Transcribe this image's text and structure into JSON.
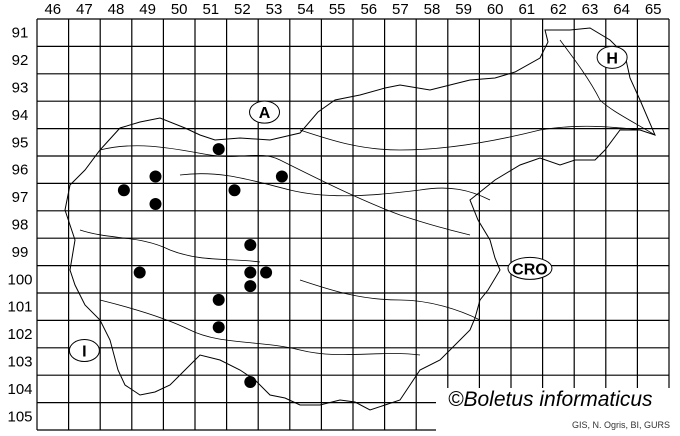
{
  "map": {
    "columns": [
      46,
      47,
      48,
      49,
      50,
      51,
      52,
      53,
      54,
      55,
      56,
      57,
      58,
      59,
      60,
      61,
      62,
      63,
      64,
      65
    ],
    "rows": [
      91,
      92,
      93,
      94,
      95,
      96,
      97,
      98,
      99,
      100,
      101,
      102,
      103,
      104,
      105
    ],
    "dot_color": "#000000",
    "records": [
      {
        "col": 51.75,
        "row": 95.75
      },
      {
        "col": 49.75,
        "row": 96.75
      },
      {
        "col": 48.75,
        "row": 97.25
      },
      {
        "col": 49.75,
        "row": 97.75
      },
      {
        "col": 52.25,
        "row": 97.25
      },
      {
        "col": 53.75,
        "row": 96.75
      },
      {
        "col": 52.75,
        "row": 99.25
      },
      {
        "col": 49.25,
        "row": 100.25
      },
      {
        "col": 52.75,
        "row": 100.25
      },
      {
        "col": 53.25,
        "row": 100.25
      },
      {
        "col": 52.75,
        "row": 100.75
      },
      {
        "col": 51.75,
        "row": 101.25
      },
      {
        "col": 51.75,
        "row": 102.25
      },
      {
        "col": 52.75,
        "row": 104.25
      }
    ],
    "country_labels": [
      {
        "text": "A",
        "col": 53.2,
        "row": 94.4
      },
      {
        "text": "H",
        "col": 64.2,
        "row": 92.4
      },
      {
        "text": "CRO",
        "col": 61.6,
        "row": 100.1
      },
      {
        "text": "I",
        "col": 47.5,
        "row": 103.1
      }
    ]
  },
  "credit": {
    "title": "©Boletus informaticus",
    "source": "GIS, N. Ogris, BI, GURS"
  }
}
